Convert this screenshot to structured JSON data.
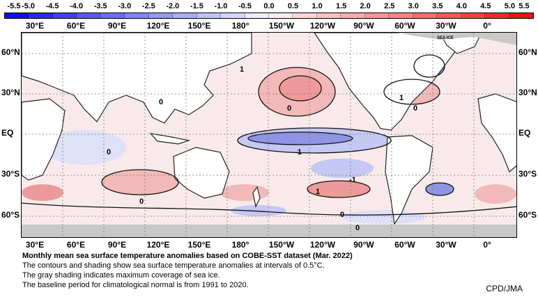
{
  "colorbar": {
    "tick_labels": [
      "-5.5",
      "-5.0",
      "-4.5",
      "-4.0",
      "-3.5",
      "-3.0",
      "-2.5",
      "-2.0",
      "-1.5",
      "-1.0",
      "-0.5",
      "0.0",
      "0.5",
      "1.0",
      "1.5",
      "2.0",
      "2.5",
      "3.0",
      "3.5",
      "4.0",
      "4.5",
      "5.0",
      "5.5"
    ],
    "colors": [
      "#1010ee",
      "#2a2af0",
      "#4040f0",
      "#5a5af2",
      "#6e6ef3",
      "#8383f4",
      "#9898f6",
      "#acacf7",
      "#c2c2f9",
      "#d6d6fb",
      "#ececfd",
      "#fdecec",
      "#fbd6d6",
      "#f9c2c2",
      "#f7acac",
      "#f69898",
      "#f48383",
      "#f36e6e",
      "#f25a5a",
      "#f04040",
      "#f02a2a",
      "#ee1010"
    ]
  },
  "map": {
    "lon_labels": [
      "30°E",
      "60°E",
      "90°E",
      "120°E",
      "150°E",
      "180°",
      "150°W",
      "120°W",
      "90°W",
      "60°W",
      "30°W",
      "0°"
    ],
    "lat_labels": [
      "60°N",
      "30°N",
      "EQ",
      "30°S",
      "60°S"
    ],
    "contour_labels": [
      "1",
      "0",
      "0",
      "1",
      "0",
      "0",
      "-1",
      "-1",
      "1",
      "0",
      "0",
      "0"
    ],
    "sea_ice_label": "SEA ICE",
    "colors": {
      "land": "#ffffff",
      "sea_ice": "#c8c8c8",
      "warm": "#f3b8b8",
      "cool": "#c4c8f2",
      "neutral": "#f8eaea",
      "grid": "#777777"
    }
  },
  "caption": {
    "title": "Monthly mean sea surface temperature anomalies based on COBE-SST dataset (Mar. 2022)",
    "line1": "The contours and shading show sea surface temperature anomalies at intervals of 0.5°C.",
    "line2": "The gray shading indicates maximum coverage of sea ice.",
    "line3": "The baseline period for climatological normal is from 1991 to 2020."
  },
  "credit": "CPD/JMA"
}
